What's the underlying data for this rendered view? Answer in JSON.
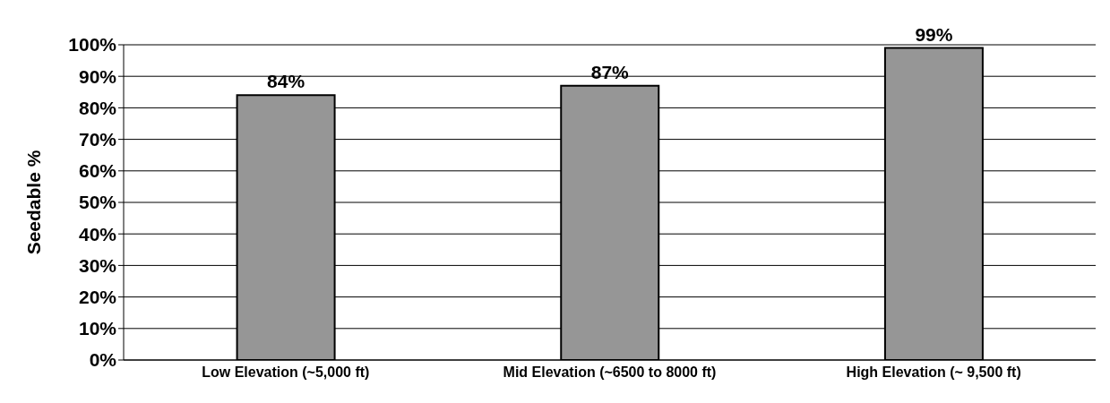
{
  "chart_data": {
    "type": "bar",
    "ylabel": "Seedable %",
    "categories": [
      "Low Elevation (~5,000 ft)",
      "Mid Elevation (~6500 to 8000 ft)",
      "High Elevation (~ 9,500 ft)"
    ],
    "values": [
      84,
      87,
      99
    ],
    "color": "#969696",
    "value_labels": [
      "84%",
      "87%",
      "99%"
    ],
    "ylim": [
      0,
      100
    ],
    "yticks": [
      {
        "value": 0,
        "label": "0%"
      },
      {
        "value": 10,
        "label": "10%"
      },
      {
        "value": 20,
        "label": "20%"
      },
      {
        "value": 30,
        "label": "30%"
      },
      {
        "value": 40,
        "label": "40%"
      },
      {
        "value": 50,
        "label": "50%"
      },
      {
        "value": 60,
        "label": "60%"
      },
      {
        "value": 70,
        "label": "70%"
      },
      {
        "value": 80,
        "label": "80%"
      },
      {
        "value": 90,
        "label": "90%"
      },
      {
        "value": 100,
        "label": "100%"
      }
    ],
    "grid": "y"
  }
}
